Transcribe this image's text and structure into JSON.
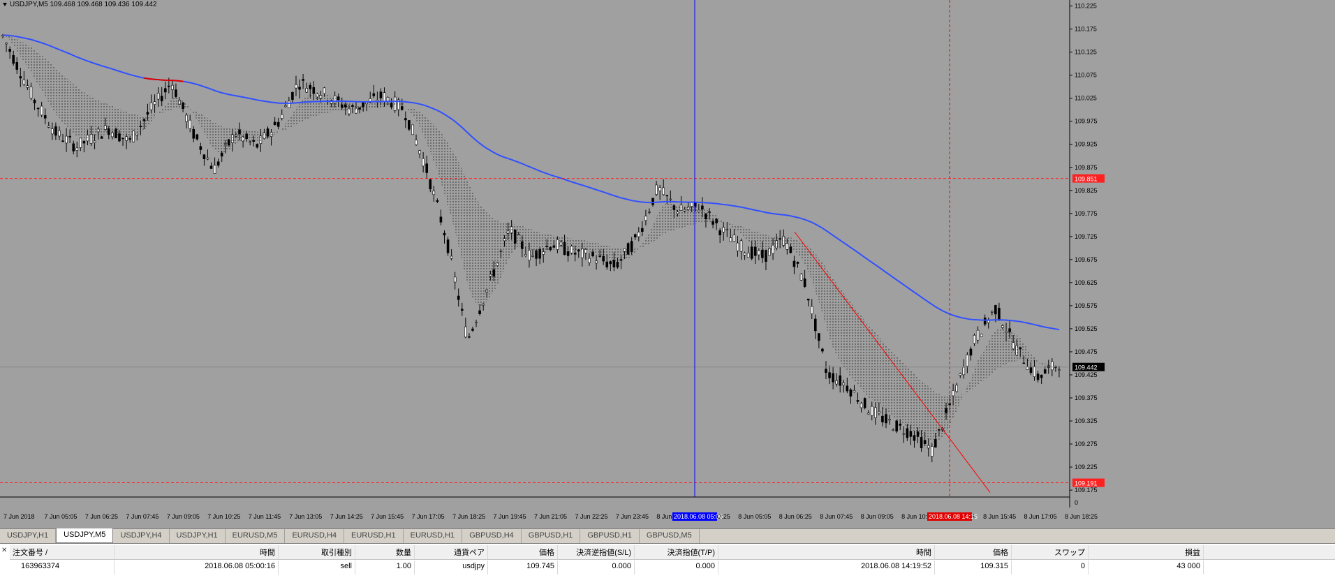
{
  "chart": {
    "title": "USDJPY,M5  109.468 109.468 109.436 109.442",
    "price_levels": [
      "110.225",
      "110.175",
      "110.125",
      "110.075",
      "110.025",
      "109.975",
      "109.925",
      "109.875",
      "109.825",
      "109.775",
      "109.725",
      "109.675",
      "109.625",
      "109.575",
      "109.525",
      "109.475",
      "109.425",
      "109.375",
      "109.325",
      "109.275",
      "109.225",
      "109.175"
    ],
    "price_ticks": [
      110.225,
      110.175,
      110.125,
      110.075,
      110.025,
      109.975,
      109.925,
      109.875,
      109.825,
      109.775,
      109.725,
      109.675,
      109.625,
      109.575,
      109.525,
      109.475,
      109.425,
      109.375,
      109.325,
      109.275,
      109.225,
      109.175
    ],
    "price_range": [
      109.16,
      110.235
    ],
    "time_labels": [
      "7 Jun 2018",
      "7 Jun 05:05",
      "7 Jun 06:25",
      "7 Jun 07:45",
      "7 Jun 09:05",
      "7 Jun 10:25",
      "7 Jun 11:45",
      "7 Jun 13:05",
      "7 Jun 14:25",
      "7 Jun 15:45",
      "7 Jun 17:05",
      "7 Jun 18:25",
      "7 Jun 19:45",
      "7 Jun 21:05",
      "7 Jun 22:25",
      "7 Jun 23:45",
      "8 Jun 01:05",
      "8 Jun 02:25",
      "8 Jun 05:05",
      "8 Jun 06:25",
      "8 Jun 07:45",
      "8 Jun 09:05",
      "8 Jun 10:25",
      "8 Jun 11:45",
      "8 Jun 15:45",
      "8 Jun 17:05",
      "8 Jun 18:25"
    ],
    "hline_upper": {
      "price": 109.851,
      "label": "109.851",
      "color": "#ff2020"
    },
    "hline_lower": {
      "price": 109.191,
      "label": "109.191",
      "color": "#ff2020"
    },
    "bid_label": {
      "price": 109.442,
      "label": "109.442"
    },
    "crosshair_time_blue": "2018.06.08 05:00",
    "crosshair_time_red": "2018.06.08 14:15",
    "axis_zero": "0",
    "colors": {
      "bg": "#a0a0a0",
      "ma": "#3050ff",
      "ma_red": "#e00000",
      "candle": "#000000",
      "vline_blue": "#0000ff",
      "trend": "#ff0000"
    }
  },
  "tabs": [
    {
      "label": "USDJPY,H1",
      "active": false
    },
    {
      "label": "USDJPY,M5",
      "active": true
    },
    {
      "label": "USDJPY,H4",
      "active": false
    },
    {
      "label": "USDJPY,H1",
      "active": false
    },
    {
      "label": "EURUSD,M5",
      "active": false
    },
    {
      "label": "EURUSD,H4",
      "active": false
    },
    {
      "label": "EURUSD,H1",
      "active": false
    },
    {
      "label": "EURUSD,H1",
      "active": false
    },
    {
      "label": "GBPUSD,H4",
      "active": false
    },
    {
      "label": "GBPUSD,H1",
      "active": false
    },
    {
      "label": "GBPUSD,H1",
      "active": false
    },
    {
      "label": "GBPUSD,M5",
      "active": false
    }
  ],
  "terminal": {
    "side_icon": "✕",
    "headers": [
      "注文番号 /",
      "時間",
      "取引種別",
      "数量",
      "通貨ペア",
      "価格",
      "決済逆指値(S/L)",
      "決済指値(T/P)",
      "時間",
      "価格",
      "スワップ",
      "損益"
    ],
    "row": [
      "163963374",
      "2018.06.08 05:00:16",
      "sell",
      "1.00",
      "usdjpy",
      "109.745",
      "0.000",
      "0.000",
      "2018.06.08 14:19:52",
      "109.315",
      "0",
      "43 000"
    ]
  }
}
